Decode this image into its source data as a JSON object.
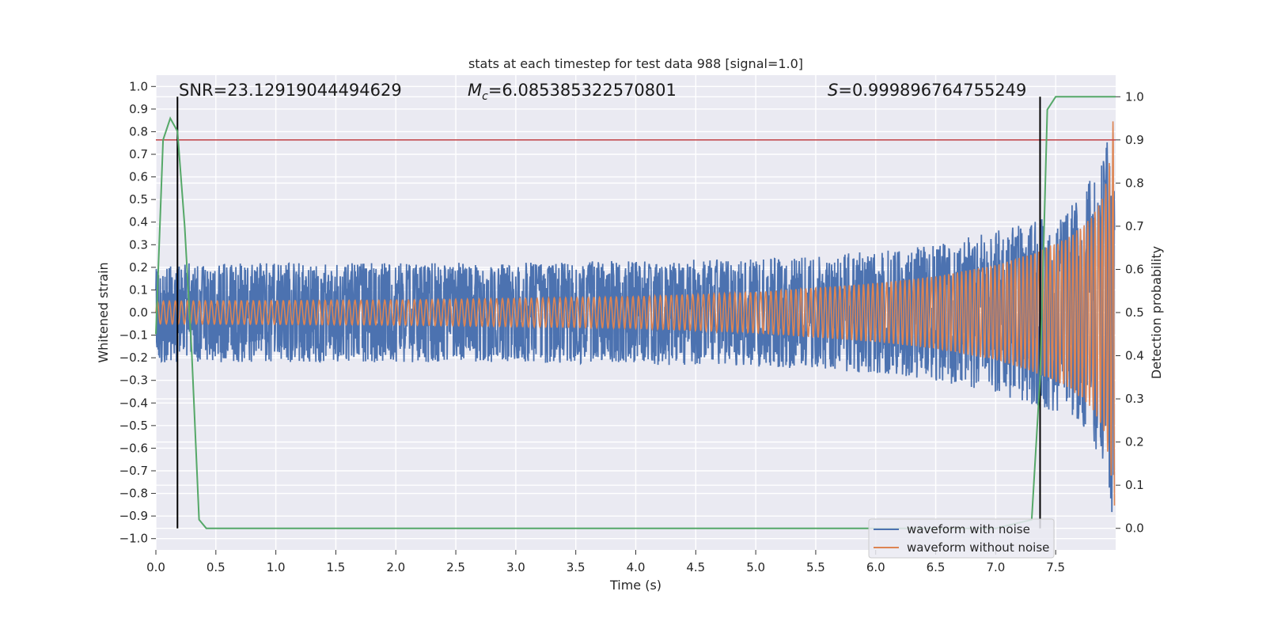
{
  "chart_data": {
    "type": "line",
    "title": "stats at each timestep for test data 988 [signal=1.0]",
    "xlabel": "Time (s)",
    "ylabel": "Whitened strain",
    "ylabel_right": "Detection probability",
    "xlim": [
      0.0,
      8.0
    ],
    "ylim": [
      -1.05,
      1.05
    ],
    "ylim_right": [
      -0.05,
      1.05
    ],
    "x_ticks": [
      "0.0",
      "0.5",
      "1.0",
      "1.5",
      "2.0",
      "2.5",
      "3.0",
      "3.5",
      "4.0",
      "4.5",
      "5.0",
      "5.5",
      "6.0",
      "6.5",
      "7.0",
      "7.5"
    ],
    "y_ticks": [
      "1.0",
      "0.9",
      "0.8",
      "0.7",
      "0.6",
      "0.5",
      "0.4",
      "0.3",
      "0.2",
      "0.1",
      "0.0",
      "−0.1",
      "−0.2",
      "−0.3",
      "−0.4",
      "−0.5",
      "−0.6",
      "−0.7",
      "−0.8",
      "−0.9",
      "−1.0"
    ],
    "y_ticks_right": [
      "1.0",
      "0.9",
      "0.8",
      "0.7",
      "0.6",
      "0.5",
      "0.4",
      "0.3",
      "0.2",
      "0.1",
      "0.0"
    ],
    "grid": true,
    "legend": {
      "location": "lower-right",
      "entries": [
        "waveform with noise",
        "waveform without noise"
      ]
    },
    "annotations": {
      "snr": "SNR=23.12919044494629",
      "mc_symbol": "M",
      "mc_sub": "c",
      "mc_value": "=6.085385322570801",
      "s_symbol": "S",
      "s_value": "=0.999896764755249"
    },
    "colors": {
      "noisy": "#4c72b0",
      "clean": "#dd8452",
      "probability": "#55a868",
      "threshold": "#c44e52",
      "markers": "#000000",
      "background": "#eaeaf2",
      "grid": "#ffffff"
    },
    "threshold_probability": 0.9,
    "vertical_markers_time": [
      0.18,
      7.37
    ],
    "series": [
      {
        "name": "waveform with noise",
        "description_points": "noise envelope (x in s, amplitude)",
        "envelope": [
          [
            0.0,
            0.22
          ],
          [
            1.0,
            0.22
          ],
          [
            2.0,
            0.22
          ],
          [
            3.0,
            0.22
          ],
          [
            4.0,
            0.23
          ],
          [
            5.0,
            0.24
          ],
          [
            6.0,
            0.27
          ],
          [
            6.5,
            0.3
          ],
          [
            7.0,
            0.36
          ],
          [
            7.4,
            0.42
          ],
          [
            7.7,
            0.5
          ],
          [
            7.9,
            0.7
          ],
          [
            7.98,
            0.98
          ]
        ]
      },
      {
        "name": "waveform without noise",
        "envelope": [
          [
            0.0,
            0.05
          ],
          [
            2.0,
            0.055
          ],
          [
            4.0,
            0.07
          ],
          [
            5.0,
            0.09
          ],
          [
            6.0,
            0.13
          ],
          [
            6.5,
            0.16
          ],
          [
            7.0,
            0.21
          ],
          [
            7.3,
            0.26
          ],
          [
            7.6,
            0.33
          ],
          [
            7.8,
            0.42
          ],
          [
            7.9,
            0.52
          ],
          [
            7.96,
            0.7
          ],
          [
            7.99,
            0.95
          ]
        ],
        "frequency_start": 20,
        "frequency_end": 34
      },
      {
        "name": "detection probability",
        "axis": "right",
        "x": [
          0.0,
          0.06,
          0.12,
          0.18,
          0.24,
          0.3,
          0.36,
          0.42,
          1.0,
          2.0,
          3.0,
          4.0,
          5.0,
          6.0,
          7.0,
          7.3,
          7.37,
          7.43,
          7.5,
          7.6,
          8.0
        ],
        "y": [
          0.45,
          0.9,
          0.95,
          0.92,
          0.7,
          0.4,
          0.02,
          0.0,
          0.0,
          0.0,
          0.0,
          0.0,
          0.0,
          0.0,
          0.0,
          0.02,
          0.35,
          0.97,
          1.0,
          1.0,
          1.0
        ]
      }
    ]
  }
}
